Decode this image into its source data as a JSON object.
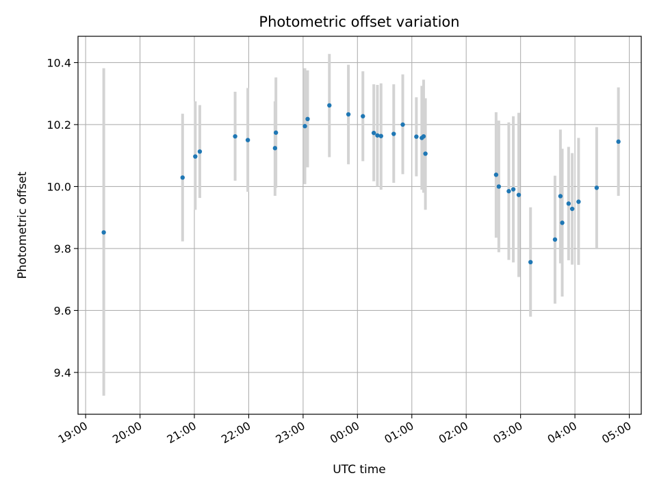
{
  "chart_data": {
    "type": "scatter",
    "title": "Photometric offset variation",
    "xlabel": "UTC time",
    "ylabel": "Photometric offset",
    "grid": true,
    "xlim": [
      "19:00",
      "05:00"
    ],
    "ylim": [
      9.265,
      10.485
    ],
    "x_ticks": [
      "19:00",
      "20:00",
      "21:00",
      "22:00",
      "23:00",
      "00:00",
      "01:00",
      "02:00",
      "03:00",
      "04:00",
      "05:00"
    ],
    "y_ticks": [
      "9.4",
      "9.6",
      "9.8",
      "10.0",
      "10.2",
      "10.4"
    ],
    "point_color": "#1f77b4",
    "errorbar_color": "#d3d3d3",
    "points": [
      {
        "t": "19:20",
        "y": 9.852,
        "lo": 9.325,
        "hi": 10.382
      },
      {
        "t": "20:47",
        "y": 10.029,
        "lo": 9.823,
        "hi": 10.235
      },
      {
        "t": "21:01",
        "y": 10.097,
        "lo": 9.925,
        "hi": 10.275
      },
      {
        "t": "21:06",
        "y": 10.113,
        "lo": 9.963,
        "hi": 10.263
      },
      {
        "t": "21:45",
        "y": 10.162,
        "lo": 10.019,
        "hi": 10.306
      },
      {
        "t": "21:59",
        "y": 10.15,
        "lo": 9.983,
        "hi": 10.318
      },
      {
        "t": "22:29",
        "y": 10.124,
        "lo": 9.97,
        "hi": 10.275
      },
      {
        "t": "22:30",
        "y": 10.174,
        "lo": 9.996,
        "hi": 10.352
      },
      {
        "t": "23:02",
        "y": 10.195,
        "lo": 10.008,
        "hi": 10.382
      },
      {
        "t": "23:05",
        "y": 10.218,
        "lo": 10.062,
        "hi": 10.375
      },
      {
        "t": "23:29",
        "y": 10.262,
        "lo": 10.095,
        "hi": 10.428
      },
      {
        "t": "23:50",
        "y": 10.233,
        "lo": 10.072,
        "hi": 10.393
      },
      {
        "t": "00:06",
        "y": 10.227,
        "lo": 10.082,
        "hi": 10.372
      },
      {
        "t": "00:18",
        "y": 10.173,
        "lo": 10.017,
        "hi": 10.33
      },
      {
        "t": "00:22",
        "y": 10.165,
        "lo": 10.0,
        "hi": 10.328
      },
      {
        "t": "00:26",
        "y": 10.163,
        "lo": 9.99,
        "hi": 10.333
      },
      {
        "t": "00:40",
        "y": 10.17,
        "lo": 10.012,
        "hi": 10.33
      },
      {
        "t": "00:50",
        "y": 10.2,
        "lo": 10.04,
        "hi": 10.362
      },
      {
        "t": "01:05",
        "y": 10.161,
        "lo": 10.033,
        "hi": 10.288
      },
      {
        "t": "01:11",
        "y": 10.157,
        "lo": 9.99,
        "hi": 10.325
      },
      {
        "t": "01:13",
        "y": 10.162,
        "lo": 9.98,
        "hi": 10.345
      },
      {
        "t": "01:15",
        "y": 10.106,
        "lo": 9.925,
        "hi": 10.285
      },
      {
        "t": "02:33",
        "y": 10.038,
        "lo": 9.835,
        "hi": 10.24
      },
      {
        "t": "02:36",
        "y": 10.0,
        "lo": 9.788,
        "hi": 10.213
      },
      {
        "t": "02:47",
        "y": 9.985,
        "lo": 9.763,
        "hi": 10.207
      },
      {
        "t": "02:52",
        "y": 9.991,
        "lo": 9.755,
        "hi": 10.227
      },
      {
        "t": "02:58",
        "y": 9.973,
        "lo": 9.708,
        "hi": 10.238
      },
      {
        "t": "03:11",
        "y": 9.756,
        "lo": 9.58,
        "hi": 9.933
      },
      {
        "t": "03:38",
        "y": 9.829,
        "lo": 9.622,
        "hi": 10.035
      },
      {
        "t": "03:44",
        "y": 9.969,
        "lo": 9.752,
        "hi": 10.184
      },
      {
        "t": "03:46",
        "y": 9.883,
        "lo": 9.645,
        "hi": 10.122
      },
      {
        "t": "03:53",
        "y": 9.945,
        "lo": 9.762,
        "hi": 10.128
      },
      {
        "t": "03:57",
        "y": 9.928,
        "lo": 9.748,
        "hi": 10.108
      },
      {
        "t": "04:04",
        "y": 9.951,
        "lo": 9.747,
        "hi": 10.157
      },
      {
        "t": "04:24",
        "y": 9.996,
        "lo": 9.802,
        "hi": 10.192
      },
      {
        "t": "04:48",
        "y": 10.145,
        "lo": 9.97,
        "hi": 10.32
      }
    ]
  }
}
